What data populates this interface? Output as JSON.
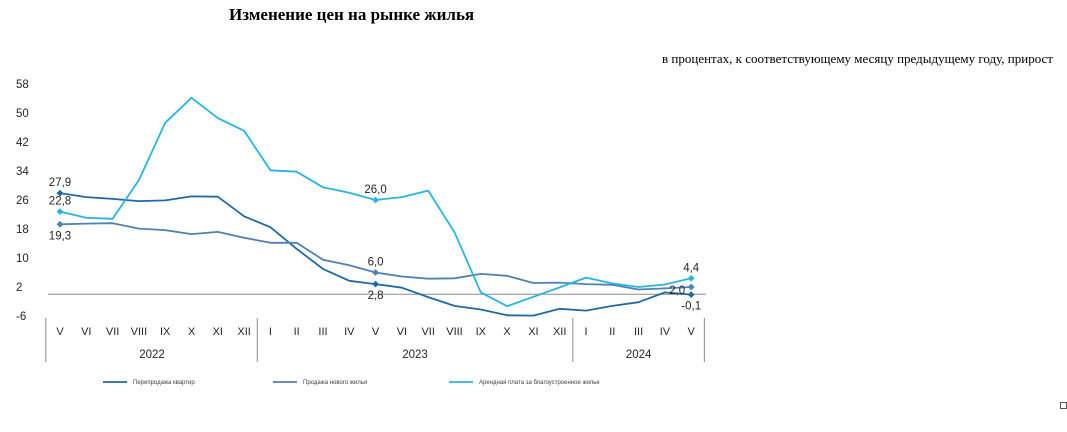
{
  "chart_data": {
    "type": "line",
    "title": "Изменение цен на рынке жилья",
    "subtitle": "в процентах, к соответствующему месяцу предыдущему году, прирост",
    "categories": [
      "V",
      "VI",
      "VII",
      "VIII",
      "IX",
      "X",
      "XI",
      "XII",
      "I",
      "II",
      "III",
      "IV",
      "V",
      "VI",
      "VII",
      "VIII",
      "IX",
      "X",
      "XI",
      "XII",
      "I",
      "II",
      "III",
      "IV",
      "V"
    ],
    "year_groups": [
      {
        "label": "2022",
        "start": 0,
        "end": 7
      },
      {
        "label": "2023",
        "start": 8,
        "end": 19
      },
      {
        "label": "2024",
        "start": 20,
        "end": 24
      }
    ],
    "y_ticks": [
      "58",
      "50",
      "42",
      "34",
      "26",
      "18",
      "10",
      "2",
      "-6"
    ],
    "ylim": [
      -6,
      58
    ],
    "baseline": 0,
    "series": [
      {
        "name": "Перепродажа квартир",
        "color": "#1f6aa5",
        "values": [
          27.9,
          26.8,
          26.3,
          25.7,
          25.9,
          27.0,
          26.9,
          21.5,
          18.5,
          12.5,
          7.0,
          3.7,
          2.8,
          1.8,
          -0.8,
          -3.2,
          -4.2,
          -5.8,
          -5.9,
          -4.0,
          -4.5,
          -3.2,
          -2.2,
          0.5,
          -0.1
        ],
        "labels": [
          {
            "index": 0,
            "text": "27,9",
            "pos": "above"
          },
          {
            "index": 12,
            "text": "2,8",
            "pos": "below"
          },
          {
            "index": 24,
            "text": "-0,1",
            "pos": "below"
          }
        ]
      },
      {
        "name": "Продажа нового жилья",
        "color": "#4f81b5",
        "values": [
          19.3,
          19.5,
          19.6,
          18.1,
          17.7,
          16.6,
          17.2,
          15.6,
          14.2,
          14.2,
          9.5,
          8.0,
          6.0,
          4.9,
          4.3,
          4.4,
          5.6,
          5.1,
          3.1,
          3.2,
          2.8,
          2.6,
          1.3,
          1.6,
          2.0
        ],
        "labels": [
          {
            "index": 0,
            "text": "19,3",
            "pos": "below"
          },
          {
            "index": 12,
            "text": "6,0",
            "pos": "above"
          },
          {
            "index": 24,
            "text": "2,0",
            "pos": "left"
          }
        ]
      },
      {
        "name": "Арендная плата за благоустроенное жилье",
        "color": "#29b5e1",
        "values": [
          22.8,
          21.1,
          20.8,
          31.5,
          47.3,
          54.2,
          48.6,
          45.1,
          34.2,
          33.8,
          29.5,
          28.0,
          26.0,
          26.8,
          28.6,
          17.1,
          0.5,
          -3.3,
          -0.7,
          1.9,
          4.6,
          3.0,
          2.0,
          2.7,
          4.4
        ],
        "labels": [
          {
            "index": 0,
            "text": "22,8",
            "pos": "above"
          },
          {
            "index": 12,
            "text": "26,0",
            "pos": "above"
          },
          {
            "index": 24,
            "text": "4,4",
            "pos": "above"
          }
        ]
      }
    ],
    "legend_position": "bottom"
  }
}
